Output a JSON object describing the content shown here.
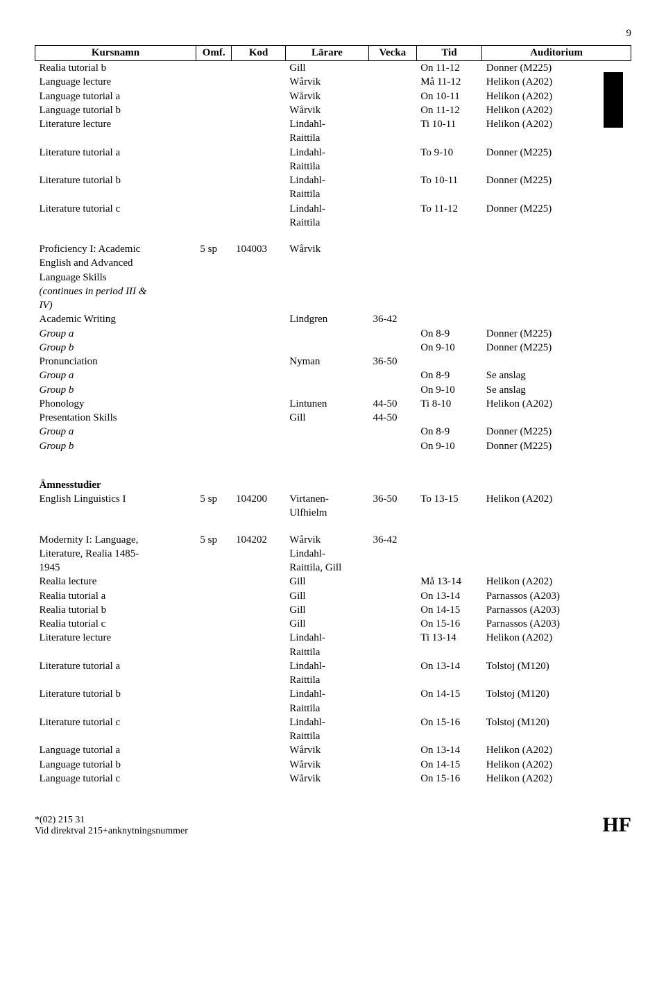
{
  "page_number": "9",
  "header": {
    "kursnamn": "Kursnamn",
    "omf": "Omf.",
    "kod": "Kod",
    "larare": "Lärare",
    "vecka": "Vecka",
    "tid": "Tid",
    "auditorium": "Auditorium"
  },
  "section1_rows": [
    {
      "name": "Realia tutorial b",
      "indent": 1,
      "italic": false,
      "larare": "Gill",
      "tid": "On 11-12",
      "aud": "Donner (M225)"
    },
    {
      "name": "Language lecture",
      "indent": 1,
      "italic": false,
      "larare": "Wårvik",
      "tid": "Må 11-12",
      "aud": "Helikon (A202)"
    },
    {
      "name": "Language tutorial a",
      "indent": 1,
      "italic": false,
      "larare": "Wårvik",
      "tid": "On 10-11",
      "aud": "Helikon (A202)"
    },
    {
      "name": "Language tutorial b",
      "indent": 1,
      "italic": false,
      "larare": "Wårvik",
      "tid": "On 11-12",
      "aud": "Helikon (A202)"
    },
    {
      "name": "Literature lecture",
      "indent": 1,
      "italic": false,
      "larare": "Lindahl-Raittila",
      "tid": "Ti 10-11",
      "aud": "Helikon (A202)"
    },
    {
      "name": "Literature tutorial a",
      "indent": 1,
      "italic": false,
      "larare": "Lindahl-Raittila",
      "tid": "To 9-10",
      "aud": "Donner (M225)"
    },
    {
      "name": "Literature tutorial b",
      "indent": 1,
      "italic": false,
      "larare": "Lindahl-Raittila",
      "tid": "To 10-11",
      "aud": "Donner (M225)"
    },
    {
      "name": "Literature tutorial c",
      "indent": 1,
      "italic": false,
      "larare": "Lindahl-Raittila",
      "tid": "To 11-12",
      "aud": "Donner (M225)"
    }
  ],
  "section2_title_lines": [
    "Proficiency I: Academic",
    "English and Advanced",
    "Language Skills"
  ],
  "section2_title_italic_lines": [
    "(continues in period III &",
    "IV)"
  ],
  "section2_omf": "5 sp",
  "section2_kod": "104003",
  "section2_larare": "Wårvik",
  "section2_rows": [
    {
      "name": "Academic Writing",
      "indent": 1,
      "italic": false,
      "larare": "Lindgren",
      "vecka": "36-42",
      "tid": "",
      "aud": ""
    },
    {
      "name": "Group a",
      "indent": 2,
      "italic": true,
      "tid": "On 8-9",
      "aud": "Donner (M225)"
    },
    {
      "name": "Group b",
      "indent": 2,
      "italic": true,
      "tid": "On 9-10",
      "aud": "Donner (M225)"
    },
    {
      "name": "Pronunciation",
      "indent": 1,
      "italic": false,
      "larare": "Nyman",
      "vecka": "36-50",
      "tid": "",
      "aud": ""
    },
    {
      "name": "Group a",
      "indent": 2,
      "italic": true,
      "tid": "On 8-9",
      "aud": "Se anslag"
    },
    {
      "name": "Group b",
      "indent": 2,
      "italic": true,
      "tid": "On 9-10",
      "aud": "Se anslag"
    },
    {
      "name": "Phonology",
      "indent": 1,
      "italic": false,
      "larare": "Lintunen",
      "vecka": "44-50",
      "tid": "Ti 8-10",
      "aud": "Helikon (A202)"
    },
    {
      "name": "Presentation Skills",
      "indent": 1,
      "italic": false,
      "larare": "Gill",
      "vecka": "44-50",
      "tid": "",
      "aud": ""
    },
    {
      "name": "Group a",
      "indent": 2,
      "italic": true,
      "tid": "On 8-9",
      "aud": "Donner (M225)"
    },
    {
      "name": "Group b",
      "indent": 2,
      "italic": true,
      "tid": "On 9-10",
      "aud": "Donner (M225)"
    }
  ],
  "section3_heading": "Ämnesstudier",
  "section3_rows": [
    {
      "name": "English Linguistics I",
      "omf": "5 sp",
      "kod": "104200",
      "larare": "Virtanen-Ulfhielm",
      "vecka": "36-50",
      "tid": "To 13-15",
      "aud": "Helikon (A202)"
    }
  ],
  "section4_title_lines": [
    "Modernity I: Language,",
    "Literature, Realia 1485-",
    "1945"
  ],
  "section4_omf": "5 sp",
  "section4_kod": "104202",
  "section4_larare_lines": [
    "Wårvik",
    "Lindahl-",
    "Raittila, Gill"
  ],
  "section4_vecka": "36-42",
  "section4_rows": [
    {
      "name": "Realia lecture",
      "indent": 1,
      "larare": "Gill",
      "tid": "Må 13-14",
      "aud": "Helikon (A202)"
    },
    {
      "name": "Realia tutorial a",
      "indent": 1,
      "larare": "Gill",
      "tid": "On 13-14",
      "aud": "Parnassos (A203)"
    },
    {
      "name": "Realia tutorial b",
      "indent": 1,
      "larare": "Gill",
      "tid": "On 14-15",
      "aud": "Parnassos (A203)"
    },
    {
      "name": "Realia tutorial c",
      "indent": 1,
      "larare": "Gill",
      "tid": "On 15-16",
      "aud": "Parnassos (A203)"
    },
    {
      "name": "Literature lecture",
      "indent": 1,
      "larare": "Lindahl-Raittila",
      "tid": "Ti 13-14",
      "aud": "Helikon (A202)"
    },
    {
      "name": "Literature tutorial a",
      "indent": 1,
      "larare": "Lindahl-Raittila",
      "tid": "On 13-14",
      "aud": "Tolstoj (M120)"
    },
    {
      "name": "Literature tutorial b",
      "indent": 1,
      "larare": "Lindahl-Raittila",
      "tid": "On 14-15",
      "aud": "Tolstoj (M120)"
    },
    {
      "name": "Literature tutorial c",
      "indent": 1,
      "larare": "Lindahl-Raittila",
      "tid": "On 15-16",
      "aud": "Tolstoj (M120)"
    },
    {
      "name": "Language tutorial a",
      "indent": 1,
      "larare": "Wårvik",
      "tid": "On 13-14",
      "aud": "Helikon (A202)"
    },
    {
      "name": "Language tutorial b",
      "indent": 1,
      "larare": "Wårvik",
      "tid": "On 14-15",
      "aud": "Helikon (A202)"
    },
    {
      "name": "Language tutorial c",
      "indent": 1,
      "larare": "Wårvik",
      "tid": "On 15-16",
      "aud": "Helikon (A202)"
    }
  ],
  "footer": {
    "line1": "*(02) 215 31",
    "line2": "Vid direktval 215+anknytningsnummer",
    "hf": "HF"
  }
}
